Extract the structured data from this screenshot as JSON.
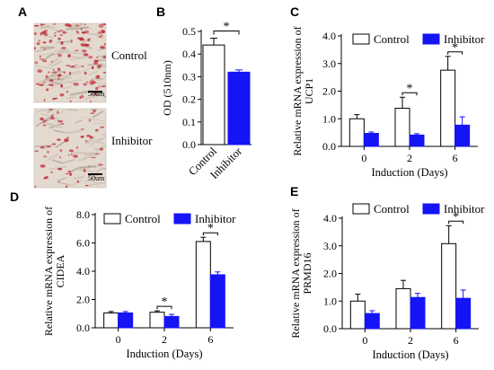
{
  "panel_letters": {
    "a": "A",
    "b": "B",
    "c": "C",
    "d": "D",
    "e": "E"
  },
  "panel_a": {
    "images": [
      {
        "label": "Control",
        "scale_bar": "50um"
      },
      {
        "label": "Inhibitor",
        "scale_bar": "50um"
      }
    ],
    "stain_color": "#c0303a",
    "background_color": "#e3d9cf"
  },
  "colors": {
    "control": "#ffffff",
    "inhibitor": "#1414f5",
    "axis": "#000000"
  },
  "chart_data": [
    {
      "id": "B",
      "type": "bar",
      "ylabel": "OD (510nm)",
      "xlabel": "",
      "categories": [
        "Control",
        "Inhibitor"
      ],
      "values": [
        0.44,
        0.32
      ],
      "errors": [
        0.03,
        0.01
      ],
      "ylim": [
        0,
        0.5
      ],
      "yticks": [
        "0.0",
        "0.1",
        "0.2",
        "0.3",
        "0.4",
        "0.5"
      ],
      "significance": [
        {
          "between": [
            0,
            1
          ],
          "label": "*"
        }
      ],
      "legend": "none"
    },
    {
      "id": "C",
      "type": "bar",
      "ylabel_lines": [
        "Relative mRNA expression of",
        "UCP1"
      ],
      "xlabel": "Induction (Days)",
      "categories": [
        "0",
        "2",
        "6"
      ],
      "ylim": [
        0,
        4
      ],
      "yticks": [
        "0.0",
        "1.0",
        "2.0",
        "3.0",
        "4.0"
      ],
      "series": [
        {
          "name": "Control",
          "values": [
            1.0,
            1.38,
            2.76
          ],
          "errors": [
            0.15,
            0.4,
            0.5
          ]
        },
        {
          "name": "Inhibitor",
          "values": [
            0.47,
            0.41,
            0.77
          ],
          "errors": [
            0.05,
            0.05,
            0.3
          ]
        }
      ],
      "significance": [
        {
          "category": 1,
          "label": "*"
        },
        {
          "category": 2,
          "label": "*"
        }
      ],
      "legend": "top"
    },
    {
      "id": "D",
      "type": "bar",
      "ylabel_lines": [
        "Relative mRNA expression of",
        "CIDEA"
      ],
      "xlabel": "Induction (Days)",
      "categories": [
        "0",
        "2",
        "6"
      ],
      "ylim": [
        0,
        8
      ],
      "yticks": [
        "0.0",
        "2.0",
        "4.0",
        "6.0",
        "8.0"
      ],
      "series": [
        {
          "name": "Control",
          "values": [
            1.05,
            1.1,
            6.1
          ],
          "errors": [
            0.1,
            0.1,
            0.3
          ]
        },
        {
          "name": "Inhibitor",
          "values": [
            1.05,
            0.8,
            3.75
          ],
          "errors": [
            0.1,
            0.15,
            0.2
          ]
        }
      ],
      "significance": [
        {
          "category": 1,
          "label": "*"
        },
        {
          "category": 2,
          "label": "*"
        }
      ],
      "legend": "top"
    },
    {
      "id": "E",
      "type": "bar",
      "ylabel_lines": [
        "Relative mRNA expression of",
        "PRMD16"
      ],
      "xlabel": "Induction (Days)",
      "categories": [
        "0",
        "2",
        "6"
      ],
      "ylim": [
        0,
        4
      ],
      "yticks": [
        "0.0",
        "1.0",
        "2.0",
        "3.0",
        "4.0"
      ],
      "series": [
        {
          "name": "Control",
          "values": [
            1.0,
            1.45,
            3.08
          ],
          "errors": [
            0.25,
            0.3,
            0.65
          ]
        },
        {
          "name": "Inhibitor",
          "values": [
            0.55,
            1.13,
            1.1
          ],
          "errors": [
            0.1,
            0.15,
            0.3
          ]
        }
      ],
      "significance": [
        {
          "category": 2,
          "label": "*"
        }
      ],
      "legend": "top"
    }
  ]
}
